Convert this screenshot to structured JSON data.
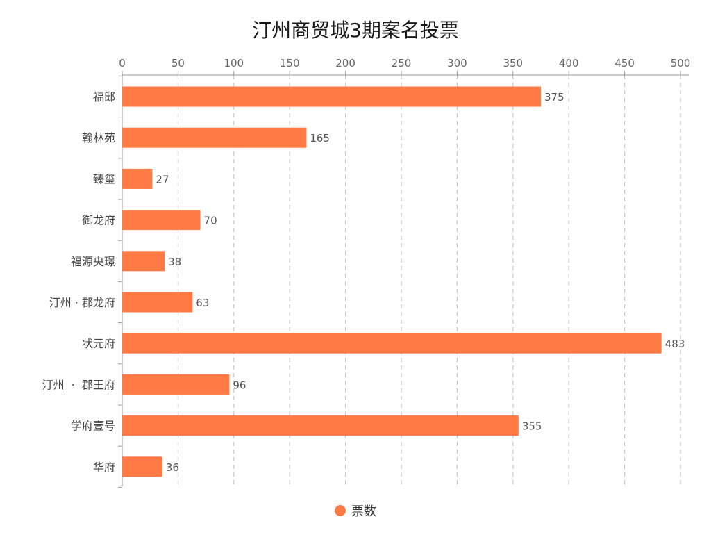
{
  "chart_data": {
    "type": "bar",
    "orientation": "horizontal",
    "title": "汀州商贸城3期案名投票",
    "categories": [
      "福邸",
      "翰林苑",
      "臻玺",
      "御龙府",
      "福源央璟",
      "汀州 · 郡龙府",
      "状元府",
      "汀州  ·  郡王府",
      "学府壹号",
      "华府"
    ],
    "series": [
      {
        "name": "票数",
        "values": [
          375,
          165,
          27,
          70,
          38,
          63,
          483,
          96,
          355,
          36
        ],
        "color": "#ff7a45"
      }
    ],
    "xlim": [
      0,
      500
    ],
    "xticks": [
      "0",
      "50",
      "100",
      "150",
      "200",
      "250",
      "300",
      "350",
      "400",
      "450",
      "500"
    ],
    "axis_position": "top",
    "grid": "vertical dashed",
    "legend_position": "bottom-center"
  }
}
